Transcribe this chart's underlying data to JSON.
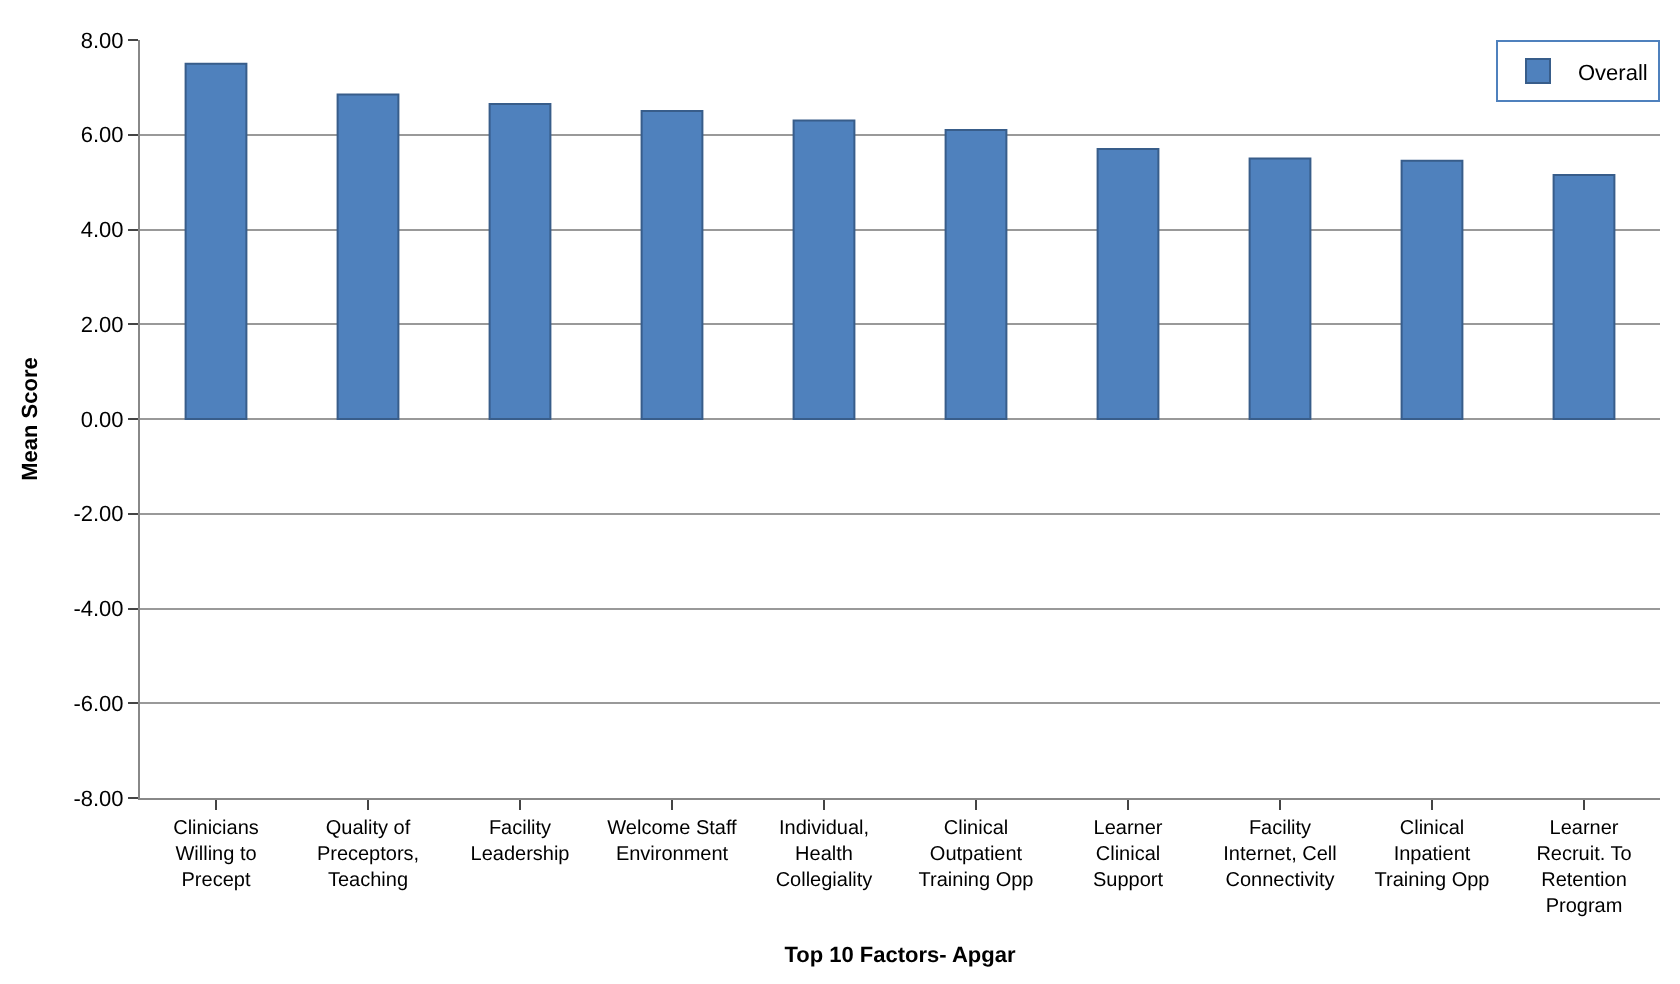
{
  "chart_data": {
    "type": "bar",
    "xlabel": "Top 10 Factors- Apgar",
    "ylabel": "Mean Score",
    "categories": [
      "Clinicians Willing to Precept",
      "Quality of Preceptors, Teaching",
      "Facility Leadership",
      "Welcome Staff Environment",
      "Individual, Health Collegiality",
      "Clinical Outpatient Training Opp",
      "Learner Clinical Support",
      "Facility Internet, Cell Connectivity",
      "Clinical Inpatient Training Opp",
      "Learner Recruit. To Retention Program"
    ],
    "series": [
      {
        "name": "Overall",
        "color": "#4f81bd",
        "values": [
          7.5,
          6.85,
          6.65,
          6.5,
          6.3,
          6.1,
          5.7,
          5.5,
          5.45,
          5.15
        ]
      }
    ],
    "ylim": [
      -8,
      8
    ],
    "yticks": [
      {
        "value": -8,
        "label": "-8.00"
      },
      {
        "value": -6,
        "label": "-6.00"
      },
      {
        "value": -4,
        "label": "-4.00"
      },
      {
        "value": -2,
        "label": "-2.00"
      },
      {
        "value": 0,
        "label": "0.00"
      },
      {
        "value": 2,
        "label": "2.00"
      },
      {
        "value": 4,
        "label": "4.00"
      },
      {
        "value": 6,
        "label": "6.00"
      },
      {
        "value": 8,
        "label": "8.00"
      }
    ],
    "grid": "y",
    "legend": "top right"
  }
}
